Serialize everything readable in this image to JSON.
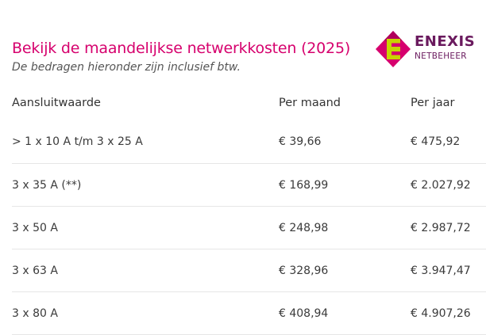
{
  "header": {
    "title": "Bekijk de maandelijkse netwerkkosten (2025)",
    "subtitle": "De bedragen hieronder zijn inclusief btw."
  },
  "logo": {
    "name": "ENEXIS",
    "sub": "NETBEHEER",
    "colors": {
      "magenta": "#d6006d",
      "green": "#c8d400",
      "purple": "#6a1a5e"
    }
  },
  "table": {
    "columns": [
      "Aansluitwaarde",
      "Per maand",
      "Per jaar"
    ],
    "rows": [
      [
        "> 1 x 10 A t/m 3 x 25 A",
        "€ 39,66",
        "€ 475,92"
      ],
      [
        "3 x 35 A (**)",
        "€ 168,99",
        "€ 2.027,92"
      ],
      [
        "3 x 50 A",
        "€ 248,98",
        "€ 2.987,72"
      ],
      [
        "3 x 63 A",
        "€ 328,96",
        "€ 3.947,47"
      ],
      [
        "3 x 80 A",
        "€ 408,94",
        "€ 4.907,26"
      ]
    ]
  }
}
